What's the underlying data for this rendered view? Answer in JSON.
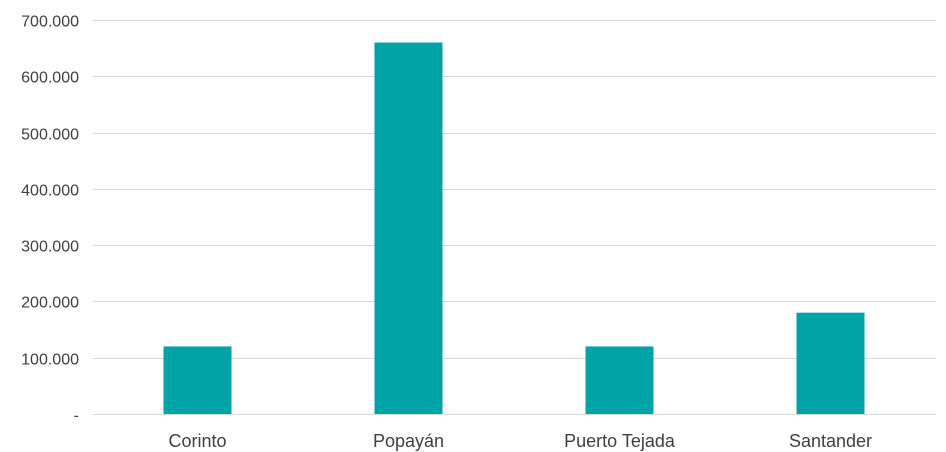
{
  "chart_data": {
    "type": "bar",
    "categories": [
      "Corinto",
      "Popayán",
      "Puerto Tejada",
      "Santander"
    ],
    "values": [
      120000,
      660000,
      120000,
      180000
    ],
    "ylim": [
      0,
      700000
    ],
    "yticks": [
      0,
      100000,
      200000,
      300000,
      400000,
      500000,
      600000,
      700000
    ],
    "ytick_labels": [
      "-",
      "100.000",
      "200.000",
      "300.000",
      "400.000",
      "500.000",
      "600.000",
      "700.000"
    ],
    "grid": true,
    "legend": "none",
    "bar_color": "#00A3A6"
  }
}
